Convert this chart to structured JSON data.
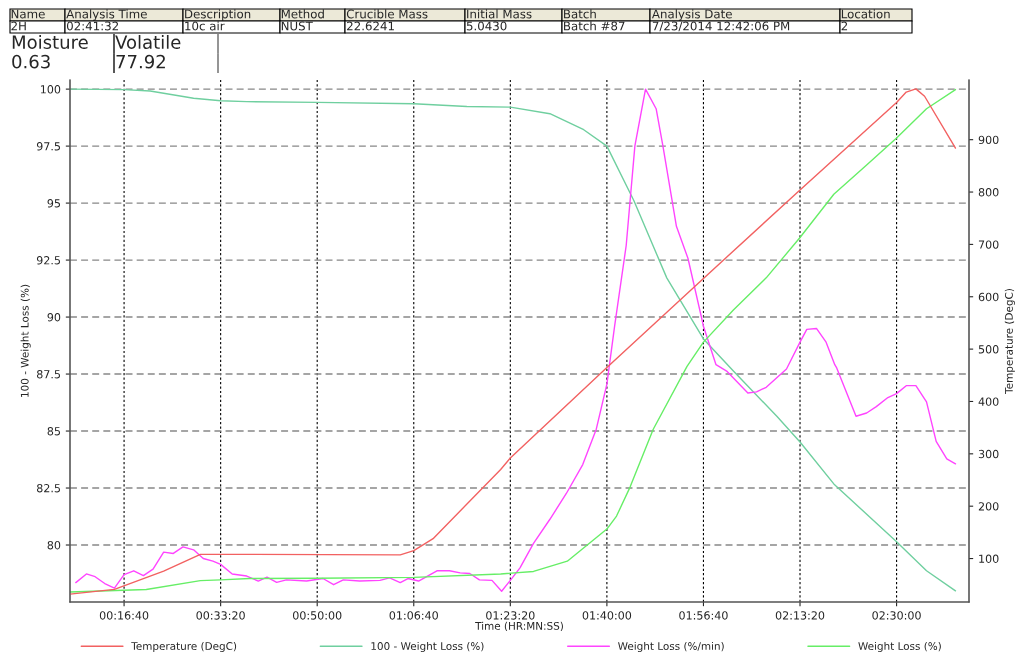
{
  "chart_data": {
    "type": "line",
    "xlabel": "Time (HR:MN:SS)",
    "ylabel": "100 - Weight Loss (%)",
    "y2label": "Temperature (DegC)",
    "annotations": [
      "Name",
      "Analysis Time",
      "Description",
      "Method",
      "Crucible Mass",
      "Initial Mass",
      "Batch",
      "Analysis Date",
      "Location",
      "2H",
      "02:41:32",
      "10c air",
      "NUST",
      "22.6241",
      "5.0430",
      "Batch #87",
      "7/23/2014 12:42:06 PM",
      "2",
      "Moisture",
      "Volatile",
      "0.63",
      "77.92"
    ],
    "xlim": [
      440,
      9750
    ],
    "xticks": [
      {
        "value": 1000,
        "label": "00:16:40"
      },
      {
        "value": 2000,
        "label": "00:33:20"
      },
      {
        "value": 3000,
        "label": "00:50:00"
      },
      {
        "value": 4000,
        "label": "01:06:40"
      },
      {
        "value": 5000,
        "label": "01:23:20"
      },
      {
        "value": 6000,
        "label": "01:40:00"
      },
      {
        "value": 7000,
        "label": "01:56:40"
      },
      {
        "value": 8000,
        "label": "02:13:20"
      },
      {
        "value": 9000,
        "label": "02:30:00"
      }
    ],
    "ylim": [
      77.5,
      100.4
    ],
    "yticks": [
      80,
      82.5,
      85,
      87.5,
      90,
      92.5,
      95,
      97.5,
      100
    ],
    "y2lim": [
      17,
      1014
    ],
    "y2ticks": [
      100,
      200,
      300,
      400,
      500,
      600,
      700,
      800,
      900
    ],
    "grid": true,
    "legend": "bottom",
    "marker": "none",
    "line_style": "solid",
    "series": [
      {
        "name": "Temperature (DegC)",
        "color": "#f26161",
        "axis": "y2",
        "x": [
          440,
          900,
          1410,
          1790,
          2130,
          3860,
          4000,
          4200,
          4900,
          5000,
          6000,
          7000,
          8000,
          9000,
          9100,
          9200,
          9290,
          9610
        ],
        "values": [
          32,
          41,
          76,
          108,
          108,
          107,
          115,
          138,
          270,
          292,
          465,
          635,
          804,
          971,
          991,
          997,
          983,
          884
        ]
      },
      {
        "name": "100 - Weight Loss (%)",
        "color": "#6fcf9f",
        "x": [
          440,
          1000,
          1270,
          1720,
          2000,
          2270,
          3000,
          4000,
          4550,
          5000,
          5410,
          5760,
          6000,
          6280,
          6620,
          7000,
          7310,
          7760,
          8000,
          8350,
          9000,
          9310,
          9610
        ],
        "values": [
          100.0,
          99.98,
          99.92,
          99.6,
          99.49,
          99.45,
          99.42,
          99.36,
          99.24,
          99.21,
          98.92,
          98.22,
          97.5,
          95.1,
          91.72,
          89.04,
          87.63,
          85.65,
          84.52,
          82.68,
          80.14,
          78.87,
          77.99
        ]
      },
      {
        "name": "Weight Loss (%/min)",
        "color": "#ff44ff",
        "x": [
          500,
          610,
          700,
          800,
          900,
          1000,
          1100,
          1200,
          1300,
          1410,
          1510,
          1610,
          1720,
          1820,
          1920,
          2000,
          2120,
          2270,
          2390,
          2480,
          2580,
          2680,
          2890,
          3060,
          3170,
          3270,
          3440,
          3650,
          3750,
          3860,
          3940,
          4050,
          4240,
          4370,
          4480,
          4580,
          4680,
          4810,
          4910,
          5000,
          5100,
          5240,
          5410,
          5580,
          5750,
          5890,
          6000,
          6080,
          6200,
          6290,
          6400,
          6510,
          6580,
          6720,
          6840,
          7000,
          7130,
          7240,
          7460,
          7550,
          7650,
          7860,
          8000,
          8070,
          8170,
          8270,
          8360,
          8380,
          8580,
          8690,
          8790,
          8910,
          9000,
          9100,
          9200,
          9310,
          9410,
          9520,
          9610
        ],
        "values": [
          78.35,
          78.73,
          78.61,
          78.31,
          78.11,
          78.7,
          78.87,
          78.66,
          78.94,
          79.69,
          79.63,
          79.92,
          79.79,
          79.41,
          79.29,
          79.15,
          78.73,
          78.64,
          78.42,
          78.59,
          78.36,
          78.47,
          78.42,
          78.53,
          78.26,
          78.47,
          78.42,
          78.45,
          78.56,
          78.35,
          78.53,
          78.42,
          78.87,
          78.87,
          78.78,
          78.75,
          78.47,
          78.45,
          77.97,
          78.45,
          79.0,
          80.07,
          81.13,
          82.26,
          83.53,
          85.08,
          87.06,
          89.6,
          93.14,
          97.51,
          100.0,
          99.14,
          97.51,
          93.98,
          92.57,
          89.6,
          87.91,
          87.63,
          86.67,
          86.72,
          86.92,
          87.72,
          88.9,
          89.46,
          89.5,
          88.9,
          87.91,
          87.77,
          85.65,
          85.79,
          86.07,
          86.47,
          86.64,
          86.99,
          86.99,
          86.28,
          84.55,
          83.78,
          83.56
        ]
      },
      {
        "name": "Weight Loss (%)",
        "color": "#66ee66",
        "x": [
          440,
          1230,
          1790,
          2000,
          2300,
          3000,
          4000,
          4900,
          5240,
          5590,
          6000,
          6100,
          6240,
          6480,
          6830,
          7000,
          7310,
          7650,
          8000,
          8350,
          8690,
          9000,
          9310,
          9610
        ],
        "values": [
          77.94,
          78.05,
          78.44,
          78.47,
          78.53,
          78.54,
          78.58,
          78.73,
          78.84,
          79.29,
          80.7,
          81.27,
          82.54,
          85.08,
          87.84,
          88.9,
          90.31,
          91.72,
          93.49,
          95.39,
          96.67,
          97.86,
          99.14,
          99.98
        ]
      }
    ]
  }
}
